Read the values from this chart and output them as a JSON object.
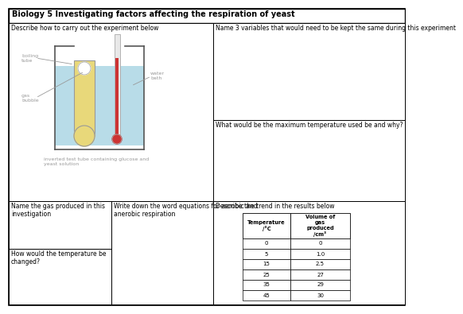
{
  "title": "Biology 5 Investigating factors affecting the respiration of yeast",
  "box1_label": "Describe how to carry out the experiment below",
  "box2_label": "Name 3 variables that would need to be kept the same during this experiment",
  "box3_label": "What would be the maximum temperature used be and why?",
  "box4_label": "Name the gas produced in this\ninvestigation",
  "box4b_label": "How would the temperature be\nchanged?",
  "box5_label": "Write down the word equations for aerobic and\nanerobic respiration",
  "box6_label": "Describe the trend in the results below",
  "table_data": [
    [
      "0",
      "0"
    ],
    [
      "5",
      "1.0"
    ],
    [
      "15",
      "2.5"
    ],
    [
      "25",
      "27"
    ],
    [
      "35",
      "29"
    ],
    [
      "45",
      "30"
    ]
  ],
  "diagram_labels": {
    "boiling_tube": "boiling\ntube",
    "gas_bubble": "gas\nbubble",
    "water_bath": "water\nbath",
    "inverted": "inverted test tube containing glucose and\nyeast solution"
  },
  "bg_color": "#ffffff",
  "water_color": "#b8dce8",
  "tube_fill_color": "#e8d87a",
  "mercury_color": "#cc3333",
  "label_color": "#999999",
  "title_fontsize": 7.0,
  "label_fontsize": 5.5,
  "small_fontsize": 4.5
}
